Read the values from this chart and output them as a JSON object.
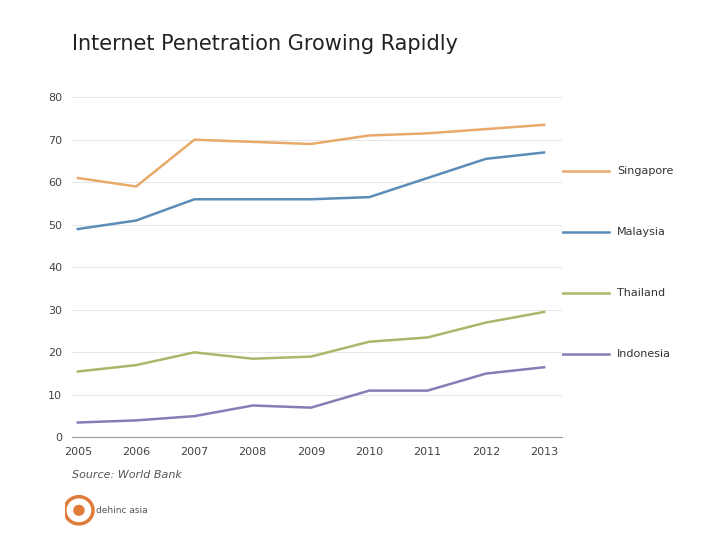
{
  "title": "Internet Penetration Growing Rapidly",
  "years": [
    2005,
    2006,
    2007,
    2008,
    2009,
    2010,
    2011,
    2012,
    2013
  ],
  "series": {
    "Singapore": [
      61,
      59,
      70,
      69.5,
      69,
      71,
      71.5,
      72.5,
      73.5
    ],
    "Malaysia": [
      49,
      51,
      56,
      56,
      56,
      56.5,
      61,
      65.5,
      67
    ],
    "Thailand": [
      15.5,
      17,
      20,
      18.5,
      19,
      22.5,
      23.5,
      27,
      29.5
    ],
    "Indonesia": [
      3.5,
      4,
      5,
      7.5,
      7,
      11,
      11,
      15,
      16.5
    ]
  },
  "colors": {
    "Singapore": "#E8A96B",
    "Malaysia": "#5B8DB8",
    "Thailand": "#A8B86A",
    "Indonesia": "#8B7BB5"
  },
  "ylim": [
    0,
    80
  ],
  "yticks": [
    0,
    10,
    20,
    30,
    40,
    50,
    60,
    70,
    80
  ],
  "source_text": "Source: World Bank",
  "bg_color": "#FFFFFF",
  "left_bar_color": "#E07B39",
  "title_fontsize": 15,
  "tick_fontsize": 8,
  "legend_fontsize": 8,
  "source_fontsize": 8,
  "line_width": 1.8
}
